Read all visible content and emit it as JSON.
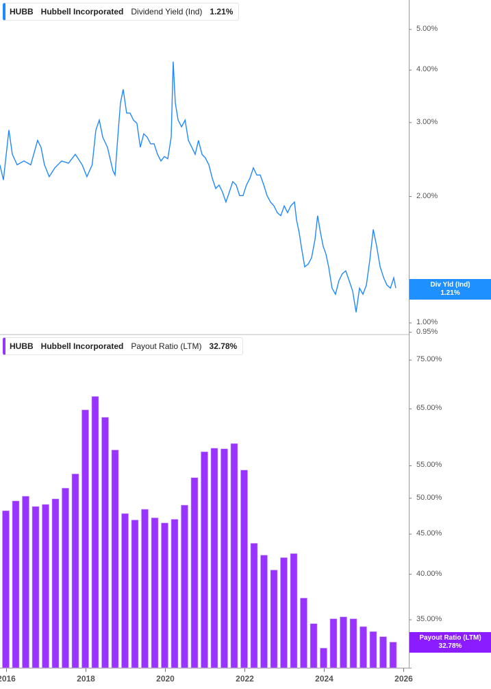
{
  "colors": {
    "dividend": "#1e88ff",
    "payout": "#9933ff",
    "payout_tag": "#8a1cff",
    "axis": "#999999"
  },
  "chart_data": [
    {
      "type": "line",
      "legend": {
        "ticker": "HUBB",
        "company": "Hubbell Incorporated",
        "metric": "Dividend Yield (Ind)",
        "value": "1.21%"
      },
      "tag": {
        "label": "Div Yld (Ind)",
        "value": "1.21%"
      },
      "y_scale": "log",
      "ylim": [
        0.95,
        5.5
      ],
      "y_ticks": [
        "5.00%",
        "4.00%",
        "3.00%",
        "2.00%",
        "1.00%",
        "0.95%"
      ],
      "y_tick_values": [
        5,
        4,
        3,
        2,
        1,
        0.95
      ],
      "x": [
        "2015-11-01",
        "2015-12-03",
        "2016-01-23",
        "2016-02-24",
        "2016-04-07",
        "2016-06-09",
        "2016-08-11",
        "2016-10-13",
        "2016-11-14",
        "2016-12-15",
        "2017-01-29",
        "2017-03-19",
        "2017-05-21",
        "2017-07-23",
        "2017-09-25",
        "2017-11-27",
        "2018-01-10",
        "2018-02-28",
        "2018-04-01",
        "2018-05-02",
        "2018-06-03",
        "2018-07-16",
        "2018-09-06",
        "2018-09-25",
        "2018-10-20",
        "2018-11-14",
        "2018-12-09",
        "2019-01-10",
        "2019-02-11",
        "2019-03-12",
        "2019-04-13",
        "2019-05-14",
        "2019-06-15",
        "2019-07-16",
        "2019-08-17",
        "2019-09-19",
        "2019-10-20",
        "2019-11-21",
        "2019-12-22",
        "2020-01-23",
        "2020-02-24",
        "2020-03-12",
        "2020-04-01",
        "2020-04-27",
        "2020-05-28",
        "2020-06-30",
        "2020-07-30",
        "2020-08-31",
        "2020-10-01",
        "2020-11-01",
        "2020-12-03",
        "2021-01-04",
        "2021-02-05",
        "2021-03-06",
        "2021-04-07",
        "2021-05-08",
        "2021-06-09",
        "2021-07-10",
        "2021-08-11",
        "2021-09-12",
        "2021-10-13",
        "2021-11-14",
        "2021-12-15",
        "2022-01-16",
        "2022-02-17",
        "2022-03-19",
        "2022-04-20",
        "2022-05-21",
        "2022-06-23",
        "2022-07-23",
        "2022-08-24",
        "2022-09-25",
        "2022-10-26",
        "2022-11-27",
        "2022-12-29",
        "2023-01-29",
        "2023-02-28",
        "2023-04-01",
        "2023-04-20",
        "2023-05-14",
        "2023-06-03",
        "2023-07-04",
        "2023-08-05",
        "2023-09-06",
        "2023-10-07",
        "2023-11-01",
        "2023-11-27",
        "2023-12-22",
        "2024-01-16",
        "2024-02-11",
        "2024-03-12",
        "2024-04-13",
        "2024-05-14",
        "2024-06-15",
        "2024-07-16",
        "2024-08-17",
        "2024-09-19",
        "2024-10-20",
        "2024-11-21",
        "2024-12-22",
        "2025-01-23",
        "2025-02-24",
        "2025-03-26",
        "2025-04-27",
        "2025-05-28",
        "2025-06-30",
        "2025-07-30",
        "2025-08-31",
        "2025-10-01",
        "2025-10-20"
      ],
      "values": [
        2.38,
        2.19,
        2.88,
        2.52,
        2.38,
        2.43,
        2.38,
        2.72,
        2.62,
        2.38,
        2.23,
        2.34,
        2.43,
        2.4,
        2.52,
        2.38,
        2.23,
        2.38,
        2.88,
        3.04,
        2.77,
        2.62,
        2.3,
        2.25,
        2.77,
        3.34,
        3.6,
        3.16,
        3.16,
        3.04,
        2.99,
        2.62,
        2.82,
        2.77,
        2.67,
        2.67,
        2.52,
        2.43,
        2.49,
        2.46,
        2.77,
        4.19,
        3.34,
        3.04,
        2.93,
        3.04,
        2.72,
        2.62,
        2.52,
        2.72,
        2.52,
        2.47,
        2.38,
        2.21,
        2.09,
        2.13,
        2.05,
        1.94,
        2.05,
        2.17,
        2.13,
        2.01,
        2.01,
        2.13,
        2.21,
        2.34,
        2.25,
        2.25,
        2.13,
        2.01,
        1.94,
        1.9,
        1.83,
        1.8,
        1.9,
        1.83,
        1.9,
        1.94,
        1.76,
        1.64,
        1.52,
        1.36,
        1.38,
        1.43,
        1.58,
        1.8,
        1.64,
        1.52,
        1.46,
        1.36,
        1.21,
        1.17,
        1.26,
        1.31,
        1.33,
        1.26,
        1.19,
        1.06,
        1.21,
        1.17,
        1.23,
        1.41,
        1.67,
        1.52,
        1.36,
        1.28,
        1.23,
        1.21,
        1.28,
        1.21
      ]
    },
    {
      "type": "bar",
      "legend": {
        "ticker": "HUBB",
        "company": "Hubbell Incorporated",
        "metric": "Payout Ratio (LTM)",
        "value": "32.78%"
      },
      "tag": {
        "label": "Payout Ratio (LTM)",
        "value": "32.78%"
      },
      "y_scale": "log",
      "ylim": [
        31,
        80
      ],
      "y_ticks": [
        "75.00%",
        "65.00%",
        "55.00%",
        "50.00%",
        "45.00%",
        "40.00%",
        "35.00%"
      ],
      "y_tick_values": [
        75,
        65,
        55,
        50,
        45,
        40,
        35
      ],
      "x_ticks": [
        "2016",
        "2018",
        "2020",
        "2022",
        "2024",
        "2026"
      ],
      "x": [
        "2016-01",
        "2016-04",
        "2016-07",
        "2016-10",
        "2017-01",
        "2017-04",
        "2017-07",
        "2017-10",
        "2018-01",
        "2018-04",
        "2018-07",
        "2018-10",
        "2019-01",
        "2019-04",
        "2019-07",
        "2019-10",
        "2020-01",
        "2020-04",
        "2020-07",
        "2020-10",
        "2021-01",
        "2021-04",
        "2021-07",
        "2021-10",
        "2022-01",
        "2022-04",
        "2022-07",
        "2022-10",
        "2023-01",
        "2023-04",
        "2023-07",
        "2023-10",
        "2024-01",
        "2024-04",
        "2024-07",
        "2024-10",
        "2025-01",
        "2025-04",
        "2025-07",
        "2025-10"
      ],
      "values": [
        48.2,
        49.6,
        50.3,
        48.8,
        49.1,
        49.9,
        51.5,
        53.7,
        64.8,
        67.4,
        63.4,
        57.6,
        47.8,
        46.9,
        48.4,
        47.2,
        46.5,
        47.0,
        49.0,
        53.1,
        57.3,
        57.9,
        57.8,
        58.7,
        54.3,
        43.8,
        42.3,
        40.5,
        42.0,
        42.5,
        37.3,
        34.6,
        32.2,
        35.1,
        35.3,
        35.1,
        34.3,
        33.8,
        33.3,
        32.78
      ]
    }
  ]
}
